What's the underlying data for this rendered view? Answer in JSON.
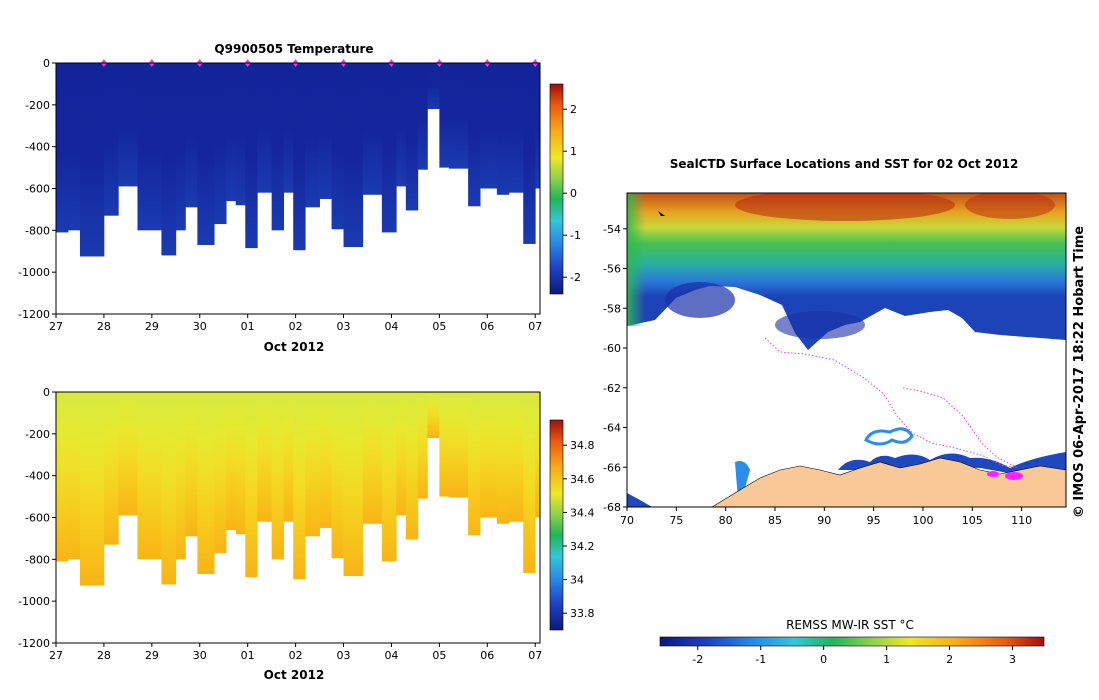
{
  "chart_data": [
    {
      "id": "temp",
      "type": "heatmap",
      "title": "Q9900505  Temperature",
      "xlabel": "Oct 2012",
      "x_tick_labels": [
        "27",
        "28",
        "29",
        "30",
        "01",
        "02",
        "03",
        "04",
        "05",
        "06",
        "07"
      ],
      "x_tick_days": [
        0,
        1,
        2,
        3,
        4,
        5,
        6,
        7,
        8,
        9,
        10
      ],
      "xlim": [
        0,
        10.1
      ],
      "ylim": [
        -1200,
        0
      ],
      "y_ticks": [
        0,
        -200,
        -400,
        -600,
        -800,
        -1000,
        -1200
      ],
      "profile_marker_days": [
        1,
        2,
        3,
        4,
        5,
        6,
        7,
        8,
        9,
        10
      ],
      "profile_marker_color": "#e040e0",
      "profiles": [
        {
          "t0": 0.0,
          "t1": 0.25,
          "depth": 810
        },
        {
          "t0": 0.25,
          "t1": 0.5,
          "depth": 800
        },
        {
          "t0": 0.5,
          "t1": 1.0,
          "depth": 925
        },
        {
          "t0": 1.0,
          "t1": 1.3,
          "depth": 730
        },
        {
          "t0": 1.3,
          "t1": 1.7,
          "depth": 590
        },
        {
          "t0": 1.7,
          "t1": 2.2,
          "depth": 800
        },
        {
          "t0": 2.2,
          "t1": 2.5,
          "depth": 920
        },
        {
          "t0": 2.5,
          "t1": 2.7,
          "depth": 800
        },
        {
          "t0": 2.7,
          "t1": 2.95,
          "depth": 690
        },
        {
          "t0": 2.95,
          "t1": 3.3,
          "depth": 870
        },
        {
          "t0": 3.3,
          "t1": 3.55,
          "depth": 770
        },
        {
          "t0": 3.55,
          "t1": 3.75,
          "depth": 660
        },
        {
          "t0": 3.75,
          "t1": 3.95,
          "depth": 680
        },
        {
          "t0": 3.95,
          "t1": 4.2,
          "depth": 885
        },
        {
          "t0": 4.2,
          "t1": 4.5,
          "depth": 620
        },
        {
          "t0": 4.5,
          "t1": 4.75,
          "depth": 800
        },
        {
          "t0": 4.75,
          "t1": 4.95,
          "depth": 620
        },
        {
          "t0": 4.95,
          "t1": 5.2,
          "depth": 895
        },
        {
          "t0": 5.2,
          "t1": 5.5,
          "depth": 690
        },
        {
          "t0": 5.5,
          "t1": 5.75,
          "depth": 650
        },
        {
          "t0": 5.75,
          "t1": 6.0,
          "depth": 795
        },
        {
          "t0": 6.0,
          "t1": 6.4,
          "depth": 880
        },
        {
          "t0": 6.4,
          "t1": 6.8,
          "depth": 630
        },
        {
          "t0": 6.8,
          "t1": 7.1,
          "depth": 810
        },
        {
          "t0": 7.1,
          "t1": 7.3,
          "depth": 590
        },
        {
          "t0": 7.3,
          "t1": 7.55,
          "depth": 705
        },
        {
          "t0": 7.55,
          "t1": 7.75,
          "depth": 510
        },
        {
          "t0": 7.75,
          "t1": 8.0,
          "depth": 220
        },
        {
          "t0": 8.0,
          "t1": 8.2,
          "depth": 500
        },
        {
          "t0": 8.2,
          "t1": 8.6,
          "depth": 505
        },
        {
          "t0": 8.6,
          "t1": 8.85,
          "depth": 685
        },
        {
          "t0": 8.85,
          "t1": 9.2,
          "depth": 600
        },
        {
          "t0": 9.2,
          "t1": 9.45,
          "depth": 630
        },
        {
          "t0": 9.45,
          "t1": 9.75,
          "depth": 620
        },
        {
          "t0": 9.75,
          "t1": 10.0,
          "depth": 865
        },
        {
          "t0": 10.0,
          "t1": 10.1,
          "depth": 600
        }
      ],
      "colorbar": {
        "vmin": -2.4,
        "vmax": 2.6,
        "ticks": [
          -2,
          -1,
          0,
          1,
          2
        ],
        "tick_labels": [
          "-2",
          "-1",
          "0",
          "1",
          "2"
        ]
      }
    },
    {
      "id": "sal",
      "type": "heatmap",
      "title": "",
      "xlabel": "Oct 2012",
      "x_tick_labels": [
        "27",
        "28",
        "29",
        "30",
        "01",
        "02",
        "03",
        "04",
        "05",
        "06",
        "07"
      ],
      "x_tick_days": [
        0,
        1,
        2,
        3,
        4,
        5,
        6,
        7,
        8,
        9,
        10
      ],
      "xlim": [
        0,
        10.1
      ],
      "ylim": [
        -1200,
        0
      ],
      "y_ticks": [
        0,
        -200,
        -400,
        -600,
        -800,
        -1000,
        -1200
      ],
      "colorbar": {
        "vmin": 33.7,
        "vmax": 34.95,
        "ticks": [
          33.8,
          34,
          34.2,
          34.4,
          34.6,
          34.8
        ],
        "tick_labels": [
          "33.8",
          "34",
          "34.2",
          "34.4",
          "34.6",
          "34.8"
        ]
      }
    },
    {
      "id": "map",
      "type": "heatmap",
      "title": "SealCTD Surface Locations and SST for 02 Oct 2012",
      "x_ticks": [
        70,
        75,
        80,
        85,
        90,
        95,
        100,
        105,
        110
      ],
      "y_ticks": [
        -54,
        -56,
        -58,
        -60,
        -62,
        -64,
        -66,
        -68
      ],
      "xlim": [
        70,
        114.5
      ],
      "ylim": [
        -68,
        -52.2
      ],
      "side_label": "© IMOS 06-Apr-2017 18:22 Hobart Time",
      "colorbar_label": "REMSS MW-IR SST °C",
      "colorbar": {
        "vmin": -2.6,
        "vmax": 3.5,
        "ticks": [
          -2,
          -1,
          0,
          1,
          2,
          3
        ],
        "tick_labels": [
          "-2",
          "-1",
          "0",
          "1",
          "2",
          "3"
        ]
      },
      "track": [
        [
          84.0,
          -59.5
        ],
        [
          85.5,
          -60.2
        ],
        [
          88.0,
          -60.3
        ],
        [
          91.0,
          -60.6
        ],
        [
          94.0,
          -61.5
        ],
        [
          96.0,
          -62.3
        ],
        [
          97.5,
          -63.5
        ],
        [
          99.0,
          -64.3
        ],
        [
          101.0,
          -64.8
        ],
        [
          103.0,
          -65.0
        ],
        [
          106.0,
          -65.4
        ],
        [
          108.0,
          -65.9
        ],
        [
          109.5,
          -66.0
        ]
      ],
      "track2": [
        [
          98.0,
          -62.0
        ],
        [
          100.0,
          -62.2
        ],
        [
          102.0,
          -62.5
        ],
        [
          104.0,
          -63.4
        ],
        [
          106.0,
          -64.8
        ],
        [
          107.5,
          -65.5
        ],
        [
          109.5,
          -66.0
        ]
      ],
      "land_color": "#f8c896"
    }
  ]
}
